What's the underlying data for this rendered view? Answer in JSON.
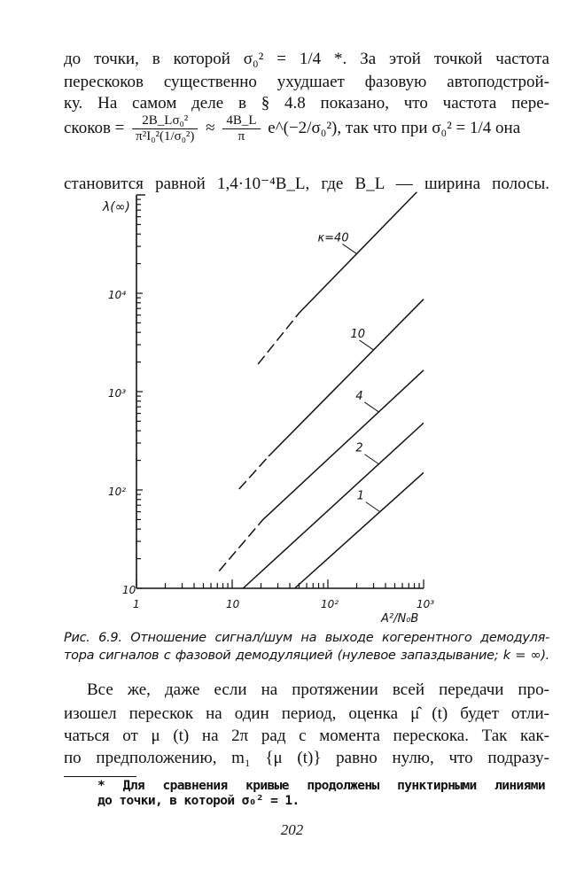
{
  "top_text": {
    "line1": "до точки, в которой σ₀² = 1/4 *. За этой точкой частота",
    "line2": "перескоков существенно ухудшает фазовую автоподстрой-",
    "line3": "ку. На самом деле в § 4.8 показано, что частота пере-",
    "line4_start": "скоков =",
    "frac1_num": "2B_Lσ₀²",
    "frac1_den": "π²I₀²(1/σ₀²)",
    "approx": "≈",
    "frac2_num": "4B_L",
    "frac2_den": "π",
    "line4_end": "e^(−2/σ₀²), так что при σ₀² = 1/4 она",
    "line5": "становится равной 1,4·10⁻⁴B_L, где B_L — ширина полосы."
  },
  "chart_data": {
    "type": "line",
    "xscale": "log",
    "yscale": "log",
    "xlim": [
      1,
      1000
    ],
    "ylim": [
      10,
      100000
    ],
    "ylabel": "λ(∞)",
    "xlabel": "A²/N₀B",
    "x_tick_labels": [
      "1",
      "10",
      "10²",
      "10³"
    ],
    "y_tick_labels": [
      "10",
      "10²",
      "10³",
      "10⁴"
    ],
    "grid": false,
    "series": [
      {
        "name": "κ=40",
        "dashed": [
          [
            18.6,
            1900
          ],
          [
            50,
            6300
          ]
        ],
        "solid": [
          [
            50,
            6300
          ],
          [
            850,
            107000
          ]
        ],
        "label_x": 200
      },
      {
        "name": "10",
        "dashed": [
          [
            11.8,
            102
          ],
          [
            24,
            220
          ]
        ],
        "solid": [
          [
            24,
            220
          ],
          [
            1000,
            8700
          ]
        ],
        "label_x": 300
      },
      {
        "name": "4",
        "dashed": [
          [
            7.3,
            15
          ],
          [
            21,
            50
          ]
        ],
        "solid": [
          [
            21,
            50
          ],
          [
            1000,
            1650
          ]
        ],
        "label_x": 340
      },
      {
        "name": "2",
        "dashed": [],
        "solid": [
          [
            13,
            10
          ],
          [
            1000,
            480
          ]
        ],
        "label_x": 340
      },
      {
        "name": "1",
        "dashed": [],
        "solid": [
          [
            45,
            10
          ],
          [
            1000,
            150
          ]
        ],
        "label_x": 350
      }
    ]
  },
  "caption": {
    "line1": "Рис. 6.9. Отношение сигнал/шум на выходе когерентного демодуля-",
    "line2": "тора сигналов с фазовой демодуляцией (нулевое запаздывание; k = ∞)."
  },
  "body_text": {
    "line1": "Все же, даже если на протяжении всей передачи про-",
    "line2": "изошел перескок на один период, оценка μ̂ (t) будет отли-",
    "line3": "чаться от μ (t) на 2π рад с момента перескока. Так как-",
    "line4": "по предположению, m₁ {μ (t)} равно нулю, что подразу-"
  },
  "footnote": {
    "line1": "* Для сравнения кривые продолжены пунктирными линиями",
    "line2": "до точки, в которой σ₀² = 1."
  },
  "page_number": "202"
}
